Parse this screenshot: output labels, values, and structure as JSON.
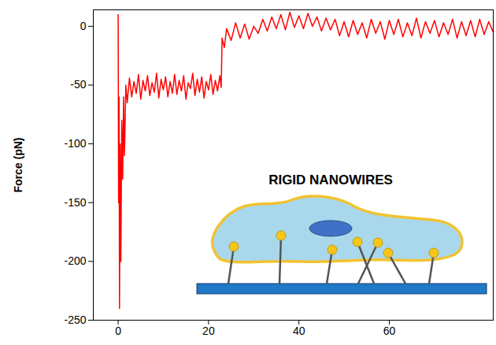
{
  "chart_data": {
    "type": "line",
    "y_label": "Force (pN)",
    "annotations": [
      "RIGID NANOWIRES"
    ],
    "color": "#ff0000",
    "xlim": [
      -5.5,
      83
    ],
    "ylim": [
      -250,
      14
    ],
    "xticks": [
      0,
      20,
      40,
      60
    ],
    "yticks": [
      0,
      -50,
      -100,
      -150,
      -200,
      -250
    ],
    "grid": false,
    "x": [
      0,
      0.1,
      0.2,
      0.3,
      0.45,
      0.6,
      0.8,
      1,
      1.2,
      1.4,
      1.7,
      2,
      2.5,
      3,
      3.5,
      4,
      4.5,
      5,
      5.5,
      6,
      6.5,
      7,
      7.5,
      8,
      8.5,
      9,
      9.5,
      10,
      10.5,
      11,
      11.5,
      12,
      12.5,
      13,
      13.5,
      14,
      14.5,
      15,
      15.5,
      16,
      16.5,
      17,
      17.5,
      18,
      18.5,
      19,
      19.5,
      20,
      20.5,
      21,
      21.5,
      22,
      22.5,
      22.8,
      23,
      23.5,
      24,
      25,
      26,
      27,
      28,
      29,
      30,
      31,
      32,
      33,
      34,
      35,
      36,
      37,
      38,
      39,
      40,
      41,
      42,
      43,
      44,
      45,
      46,
      47,
      48,
      49,
      50,
      51,
      52,
      53,
      54,
      55,
      56,
      57,
      58,
      59,
      60,
      61,
      62,
      63,
      64,
      65,
      66,
      67,
      68,
      69,
      70,
      71,
      72,
      73,
      74,
      75,
      76,
      77,
      78,
      79,
      80,
      81,
      82,
      83
    ],
    "values": [
      10,
      -150,
      -60,
      -240,
      -100,
      -200,
      -80,
      -130,
      -60,
      -110,
      -50,
      -65,
      -44,
      -60,
      -47,
      -57,
      -41,
      -62,
      -46,
      -55,
      -42,
      -59,
      -48,
      -56,
      -40,
      -61,
      -45,
      -54,
      -43,
      -60,
      -47,
      -57,
      -41,
      -58,
      -46,
      -55,
      -42,
      -62,
      -48,
      -53,
      -40,
      -59,
      -45,
      -56,
      -43,
      -61,
      -47,
      -54,
      -41,
      -58,
      -46,
      -55,
      -42,
      -52,
      -10,
      -18,
      -2,
      -12,
      3,
      -10,
      2,
      -11,
      0,
      -6,
      6,
      -4,
      8,
      -2,
      10,
      -3,
      12,
      -1,
      9,
      -2,
      11,
      0,
      8,
      -4,
      7,
      -3,
      6,
      -8,
      4,
      -9,
      5,
      -7,
      3,
      -10,
      6,
      -6,
      4,
      -11,
      5,
      -7,
      6,
      -9,
      3,
      -8,
      7,
      -10,
      4,
      -6,
      5,
      -9,
      3,
      -7,
      6,
      -10,
      4,
      -8,
      5,
      -9,
      6,
      -7,
      4,
      -5
    ]
  }
}
